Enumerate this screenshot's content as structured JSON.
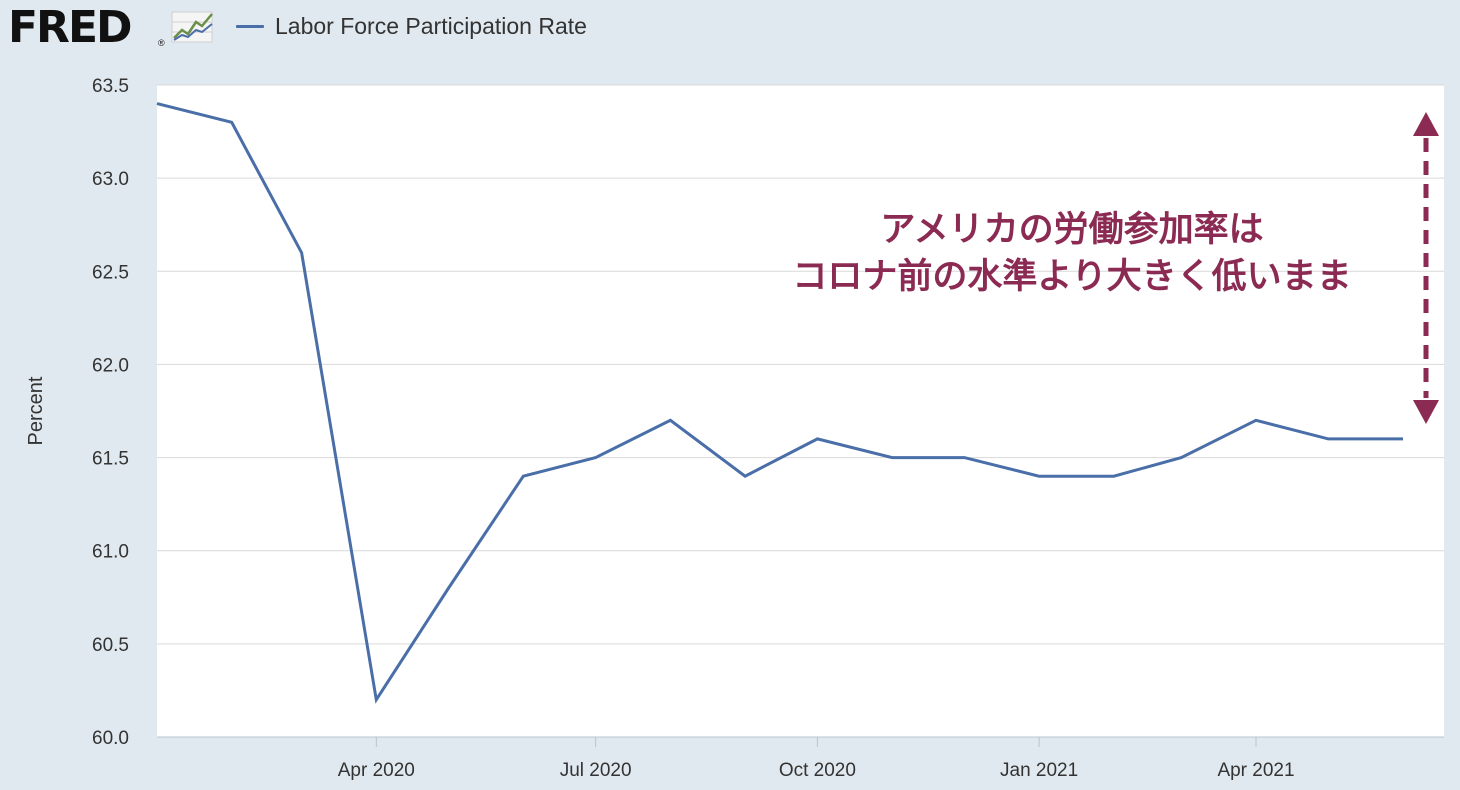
{
  "header": {
    "logo_text": "FRED",
    "logo_registered": "®",
    "legend_label": "Labor Force Participation Rate"
  },
  "colors": {
    "background": "#e1e9f0",
    "plot_background": "#ffffff",
    "series_line": "#4a6ea8",
    "gridline": "#d9d9d9",
    "annotation": "#8b2a52"
  },
  "icons": [
    "fred-line-chart-icon",
    "double-headed-arrow-icon"
  ],
  "chart_data": {
    "type": "line",
    "title": "",
    "xlabel": "",
    "ylabel": "Percent",
    "ylim": [
      60.0,
      63.5
    ],
    "yticks": [
      "60.0",
      "60.5",
      "61.0",
      "61.5",
      "62.0",
      "62.5",
      "63.0",
      "63.5"
    ],
    "xticks": [
      {
        "label": "Apr 2020",
        "date": "2020-04-01"
      },
      {
        "label": "Jul 2020",
        "date": "2020-07-01"
      },
      {
        "label": "Oct 2020",
        "date": "2020-10-01"
      },
      {
        "label": "Jan 2021",
        "date": "2021-01-01"
      },
      {
        "label": "Apr 2021",
        "date": "2021-04-01"
      }
    ],
    "xlim": [
      "2020-01-01",
      "2021-06-18"
    ],
    "grid": true,
    "legend": "top-left",
    "series": [
      {
        "name": "Labor Force Participation Rate",
        "x": [
          "2020-01-01",
          "2020-02-01",
          "2020-03-01",
          "2020-04-01",
          "2020-05-01",
          "2020-06-01",
          "2020-07-01",
          "2020-08-01",
          "2020-09-01",
          "2020-10-01",
          "2020-11-01",
          "2020-12-01",
          "2021-01-01",
          "2021-02-01",
          "2021-03-01",
          "2021-04-01",
          "2021-05-01",
          "2021-06-01"
        ],
        "values": [
          63.4,
          63.3,
          62.6,
          60.2,
          60.8,
          61.4,
          61.5,
          61.7,
          61.4,
          61.6,
          61.5,
          61.5,
          61.4,
          61.4,
          61.5,
          61.7,
          61.6,
          61.6
        ]
      }
    ],
    "annotations": [
      {
        "text_line1": "アメリカの労働参加率は",
        "text_line2": "コロナ前の水準より大きく低いまま"
      }
    ]
  }
}
